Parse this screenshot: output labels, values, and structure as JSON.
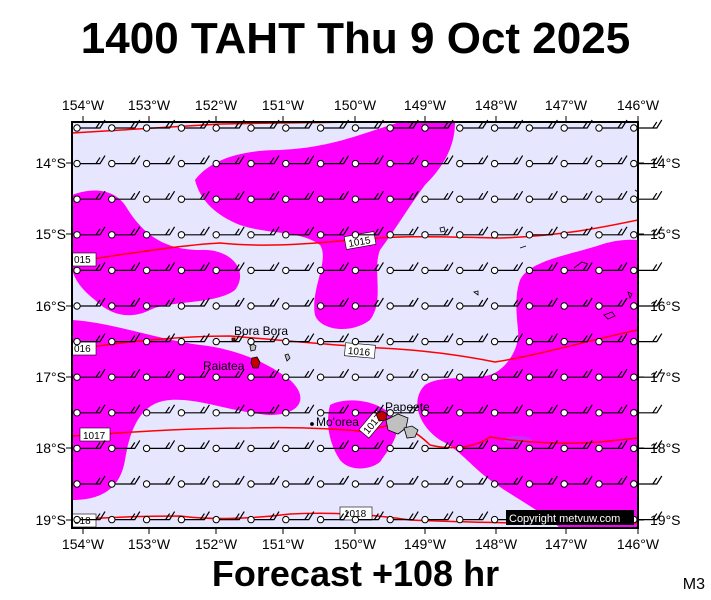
{
  "header": {
    "title": "1400 TAHT Thu 9 Oct 2025"
  },
  "footer": {
    "forecast": "Forecast +108 hr",
    "model": "M3"
  },
  "map": {
    "background_color": "#e6e6ff",
    "rain_color": "#ff00ff",
    "isobar_color": "#ff0000",
    "lon_labels": [
      "154°W",
      "153°W",
      "152°W",
      "151°W",
      "150°W",
      "149°W",
      "148°W",
      "147°W",
      "146°W"
    ],
    "lat_labels": [
      "14°S",
      "15°S",
      "16°S",
      "17°S",
      "18°S",
      "19°S"
    ],
    "isobars": [
      {
        "label": "015",
        "label2": "1015"
      },
      {
        "label": "016",
        "label2": "1016"
      },
      {
        "label": "1017",
        "label2": "1017"
      },
      {
        "label": "018",
        "label2": "1018"
      }
    ],
    "places": [
      "Bora Bora",
      "Raiatea",
      "Papeete",
      "Mo'orea"
    ],
    "copyright": "Copyright metvuw.com",
    "wind_barb_icon": "wind-barb-icon"
  }
}
